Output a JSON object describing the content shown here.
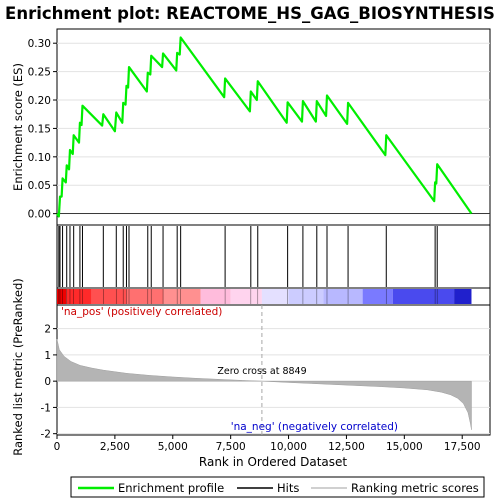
{
  "chart_data": {
    "type": "line",
    "title": "Enrichment plot: REACTOME_HS_GAG_BIOSYNTHESIS",
    "top_panel": {
      "ylabel": "Enrichment score (ES)",
      "ylim": [
        -0.02,
        0.325
      ],
      "yticks": [
        0.0,
        0.05,
        0.1,
        0.15,
        0.2,
        0.25,
        0.3
      ],
      "ytick_labels": [
        "0.00",
        "0.05",
        "0.10",
        "0.15",
        "0.20",
        "0.25",
        "0.30"
      ],
      "series": [
        {
          "name": "Enrichment profile",
          "color": "#00ee00",
          "points": [
            [
              0,
              0.0
            ],
            [
              80,
              -0.005
            ],
            [
              130,
              0.03
            ],
            [
              200,
              0.03
            ],
            [
              240,
              0.062
            ],
            [
              380,
              0.055
            ],
            [
              420,
              0.085
            ],
            [
              520,
              0.078
            ],
            [
              560,
              0.112
            ],
            [
              680,
              0.105
            ],
            [
              720,
              0.138
            ],
            [
              950,
              0.125
            ],
            [
              990,
              0.16
            ],
            [
              1060,
              0.156
            ],
            [
              1100,
              0.19
            ],
            [
              1950,
              0.155
            ],
            [
              2000,
              0.175
            ],
            [
              2500,
              0.145
            ],
            [
              2560,
              0.178
            ],
            [
              2820,
              0.16
            ],
            [
              2860,
              0.195
            ],
            [
              2960,
              0.192
            ],
            [
              3000,
              0.225
            ],
            [
              3070,
              0.222
            ],
            [
              3110,
              0.258
            ],
            [
              3880,
              0.215
            ],
            [
              3920,
              0.248
            ],
            [
              4030,
              0.245
            ],
            [
              4070,
              0.278
            ],
            [
              4540,
              0.258
            ],
            [
              4580,
              0.282
            ],
            [
              5150,
              0.252
            ],
            [
              5190,
              0.283
            ],
            [
              5300,
              0.28
            ],
            [
              5340,
              0.31
            ],
            [
              7220,
              0.205
            ],
            [
              7260,
              0.238
            ],
            [
              8330,
              0.18
            ],
            [
              8370,
              0.215
            ],
            [
              8630,
              0.2
            ],
            [
              8670,
              0.233
            ],
            [
              9920,
              0.16
            ],
            [
              9960,
              0.196
            ],
            [
              10580,
              0.162
            ],
            [
              10620,
              0.198
            ],
            [
              11180,
              0.162
            ],
            [
              11220,
              0.198
            ],
            [
              11620,
              0.172
            ],
            [
              11660,
              0.208
            ],
            [
              12530,
              0.158
            ],
            [
              12570,
              0.195
            ],
            [
              14180,
              0.103
            ],
            [
              14220,
              0.138
            ],
            [
              16290,
              0.022
            ],
            [
              16330,
              0.055
            ],
            [
              16380,
              0.053
            ],
            [
              16420,
              0.087
            ],
            [
              17900,
              0.0
            ]
          ]
        }
      ],
      "hits": [
        80,
        130,
        240,
        420,
        560,
        720,
        990,
        1100,
        2000,
        2560,
        2860,
        3000,
        3110,
        3920,
        4070,
        4580,
        5190,
        5340,
        7260,
        8370,
        8670,
        9960,
        10620,
        11220,
        11660,
        12570,
        14220,
        16330,
        16420
      ],
      "hits_label": "Hits"
    },
    "bottom_panel": {
      "ylabel": "Ranked list metric (PreRanked)",
      "xlabel": "Rank in Ordered Dataset",
      "xlim": [
        0,
        18700
      ],
      "ylim": [
        -2.05,
        2.9
      ],
      "yticks": [
        -2,
        -1,
        0,
        1,
        2
      ],
      "ytick_labels": [
        "-2",
        "-1",
        "0",
        "1",
        "2"
      ],
      "xticks": [
        0,
        2500,
        5000,
        7500,
        10000,
        12500,
        15000,
        17500
      ],
      "xtick_labels": [
        "0",
        "2,500",
        "5,000",
        "7,500",
        "10,000",
        "12,500",
        "15,000",
        "17,500"
      ],
      "metric_curve": [
        [
          0,
          1.6
        ],
        [
          100,
          1.2
        ],
        [
          300,
          0.95
        ],
        [
          600,
          0.75
        ],
        [
          1000,
          0.6
        ],
        [
          1500,
          0.5
        ],
        [
          2000,
          0.42
        ],
        [
          3000,
          0.3
        ],
        [
          4000,
          0.22
        ],
        [
          5000,
          0.16
        ],
        [
          6000,
          0.11
        ],
        [
          7000,
          0.07
        ],
        [
          8000,
          0.03
        ],
        [
          8849,
          0.0
        ],
        [
          10000,
          -0.05
        ],
        [
          11000,
          -0.09
        ],
        [
          12000,
          -0.13
        ],
        [
          13000,
          -0.17
        ],
        [
          14000,
          -0.21
        ],
        [
          15000,
          -0.26
        ],
        [
          16000,
          -0.33
        ],
        [
          16600,
          -0.42
        ],
        [
          17000,
          -0.52
        ],
        [
          17300,
          -0.65
        ],
        [
          17550,
          -0.85
        ],
        [
          17750,
          -1.2
        ],
        [
          17850,
          -1.6
        ],
        [
          17900,
          -1.85
        ]
      ],
      "metric_label": "Ranking metric scores",
      "zero_cross": 8849,
      "zero_cross_label": "Zero cross at 8849",
      "pos_label": "'na_pos' (positively correlated)",
      "neg_label": "'na_neg' (negatively correlated)"
    },
    "heat_bar": {
      "segments": [
        {
          "start": 0,
          "end": 400,
          "color": "#ee0000"
        },
        {
          "start": 400,
          "end": 1500,
          "color": "#ff2a2a"
        },
        {
          "start": 1500,
          "end": 3000,
          "color": "#ff5050"
        },
        {
          "start": 3000,
          "end": 4600,
          "color": "#ff7070"
        },
        {
          "start": 4600,
          "end": 6200,
          "color": "#ff9090"
        },
        {
          "start": 6200,
          "end": 7500,
          "color": "#ffbcdc"
        },
        {
          "start": 7500,
          "end": 8849,
          "color": "#ffd4ee"
        },
        {
          "start": 8849,
          "end": 10000,
          "color": "#e4e0ff"
        },
        {
          "start": 10000,
          "end": 11500,
          "color": "#ccccff"
        },
        {
          "start": 11500,
          "end": 13200,
          "color": "#b8b8ff"
        },
        {
          "start": 13200,
          "end": 14500,
          "color": "#7a7aff"
        },
        {
          "start": 14500,
          "end": 17150,
          "color": "#4a4aee"
        },
        {
          "start": 17150,
          "end": 17900,
          "color": "#2020cc"
        }
      ]
    },
    "legend": {
      "placement": "bottom",
      "entries": [
        {
          "label": "Enrichment profile",
          "color": "#00ee00"
        },
        {
          "label": "Hits",
          "color": "#000000"
        },
        {
          "label": "Ranking metric scores",
          "color": "#c0c0c0"
        }
      ]
    }
  }
}
